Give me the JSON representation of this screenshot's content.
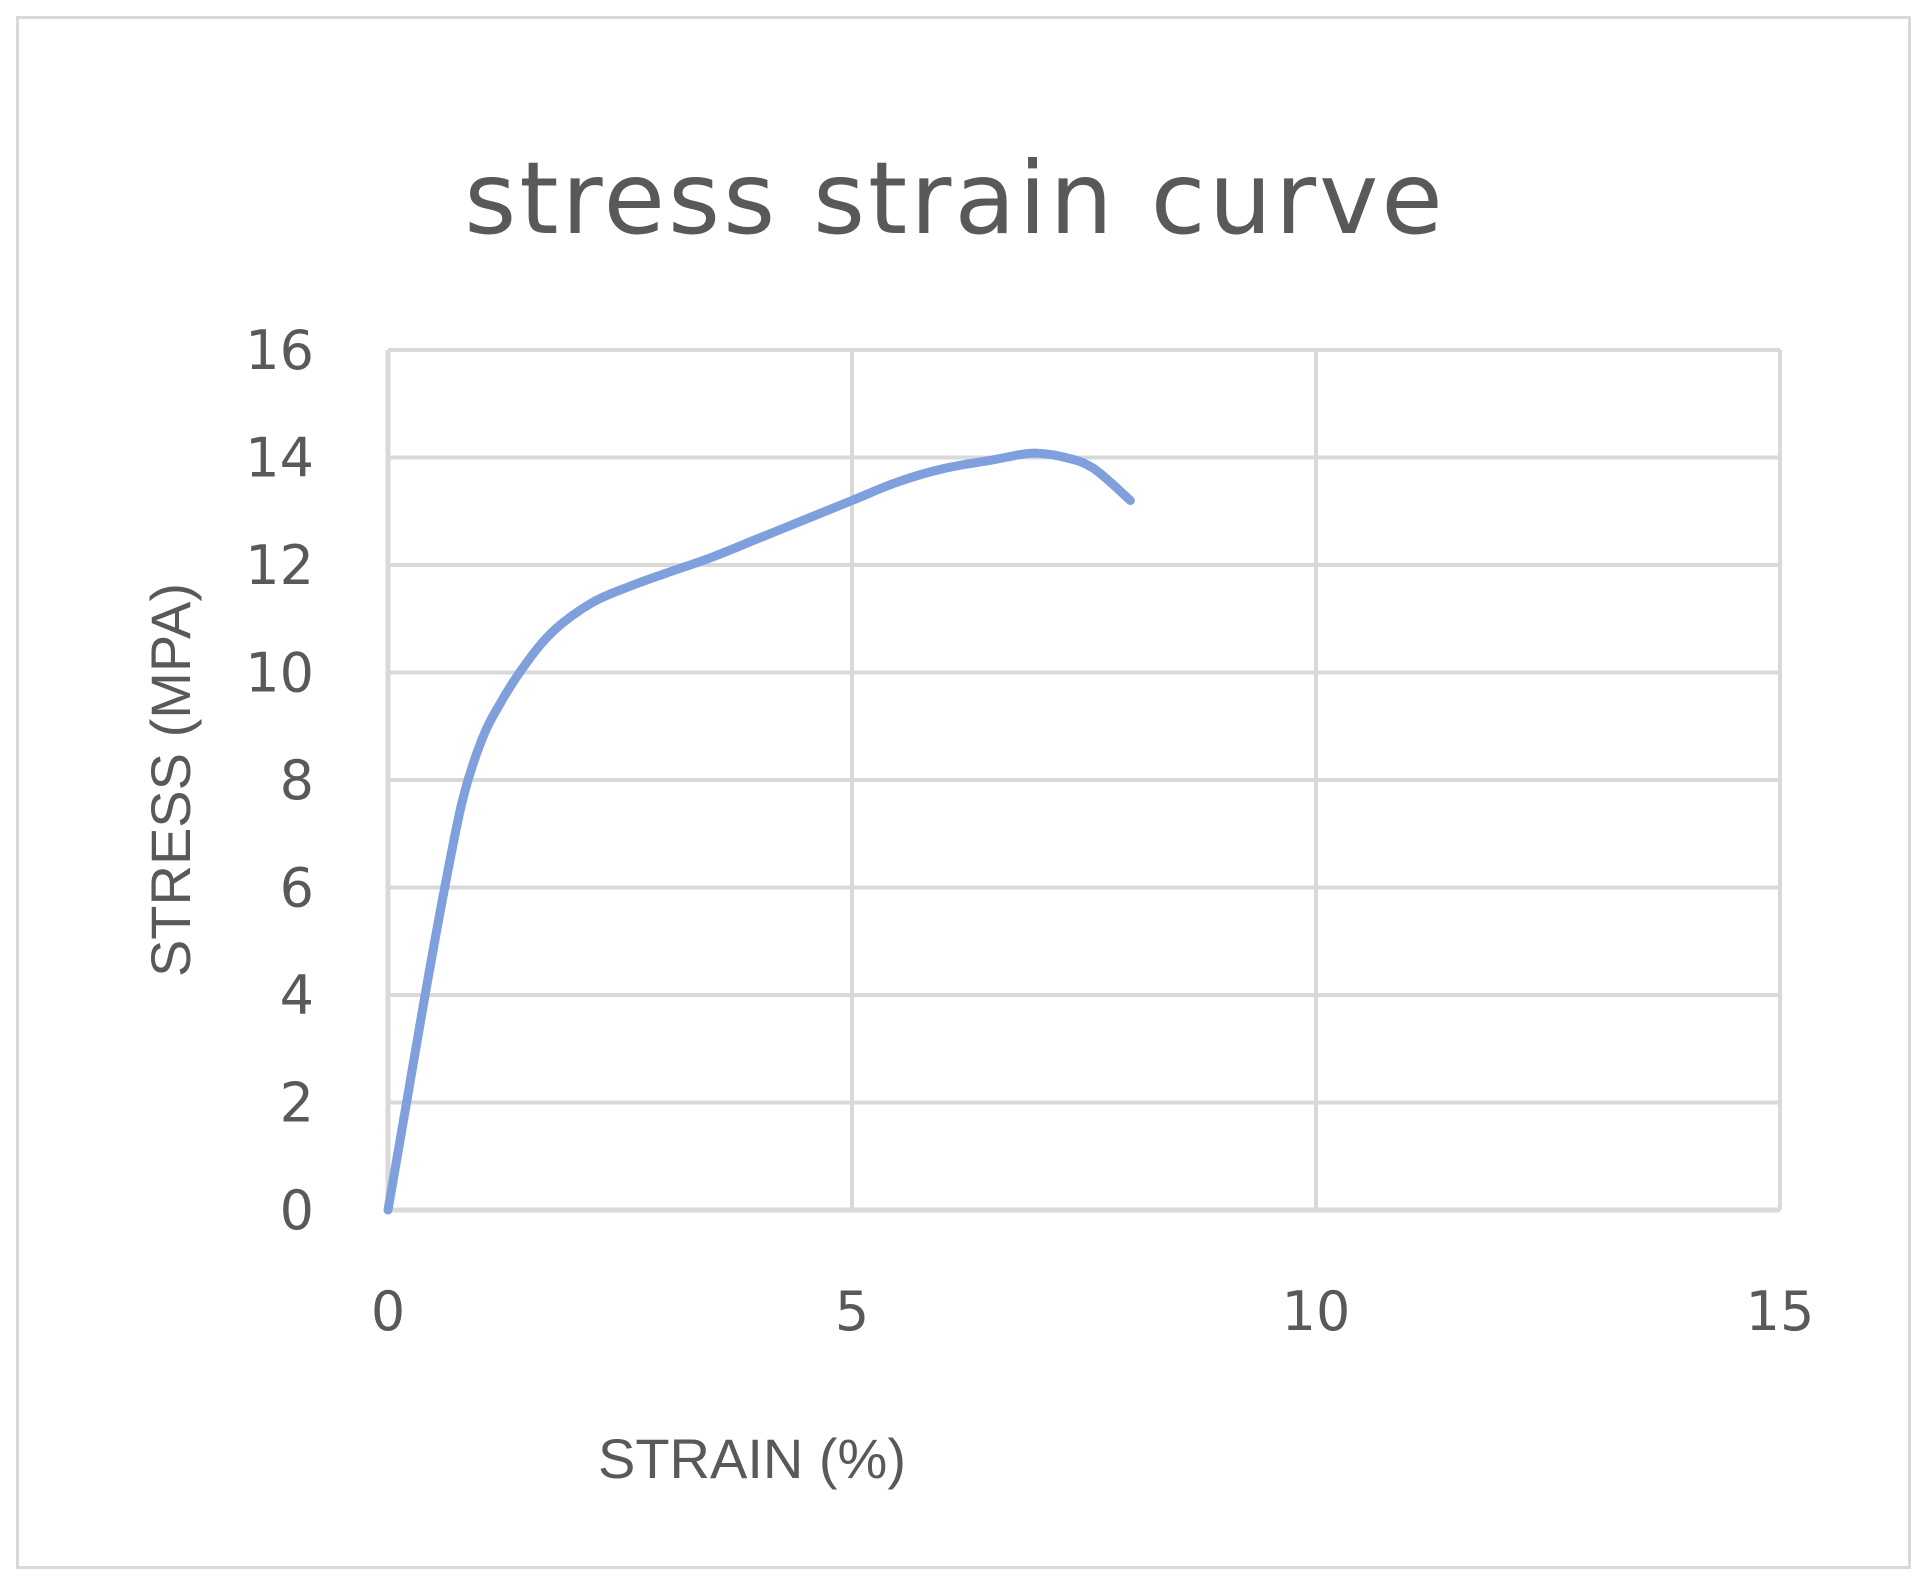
{
  "chart_data": {
    "type": "line",
    "title": "stress strain curve",
    "xlabel": "STRAIN (%)",
    "ylabel": "STRESS (MPA)",
    "xlim": [
      0,
      15
    ],
    "ylim": [
      0,
      16
    ],
    "xticks": [
      "0",
      "5",
      "10",
      "15"
    ],
    "yticks": [
      "0",
      "2",
      "4",
      "6",
      "8",
      "10",
      "12",
      "14",
      "16"
    ],
    "grid": true,
    "legend": "none",
    "series": [
      {
        "color": "#7f9fdd",
        "x": [
          0,
          0.2,
          0.4,
          0.6,
          0.8,
          1.0,
          1.2,
          1.5,
          1.8,
          2.2,
          2.6,
          3.0,
          3.5,
          4.0,
          4.5,
          5.0,
          5.5,
          6.0,
          6.5,
          6.8,
          7.0,
          7.3,
          7.6,
          8.0
        ],
        "y": [
          0,
          2.0,
          4.0,
          5.9,
          7.6,
          8.7,
          9.4,
          10.2,
          10.8,
          11.3,
          11.6,
          11.85,
          12.15,
          12.5,
          12.85,
          13.2,
          13.55,
          13.8,
          13.95,
          14.05,
          14.08,
          14.0,
          13.8,
          13.2
        ]
      }
    ]
  }
}
